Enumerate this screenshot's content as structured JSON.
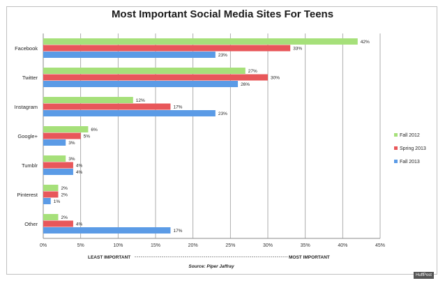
{
  "chart_data": {
    "type": "bar",
    "orientation": "horizontal",
    "title": "Most Important Social Media Sites For Teens",
    "categories": [
      "Facebook",
      "Twitter",
      "Instagram",
      "Google+",
      "Tumblr",
      "Pinterest",
      "Other"
    ],
    "series": [
      {
        "name": "Fall 2012",
        "color": "#a6e07a",
        "values": [
          42,
          27,
          12,
          6,
          3,
          2,
          2
        ]
      },
      {
        "name": "Spring 2013",
        "color": "#e8575a",
        "values": [
          33,
          30,
          17,
          5,
          4,
          2,
          4
        ]
      },
      {
        "name": "Fall 2013",
        "color": "#5b9be6",
        "values": [
          23,
          26,
          23,
          3,
          4,
          1,
          17
        ]
      }
    ],
    "x_ticks": [
      "0%",
      "5%",
      "10%",
      "15%",
      "20%",
      "25%",
      "30%",
      "35%",
      "40%",
      "45%"
    ],
    "xlim": [
      0,
      45
    ],
    "value_suffix": "%",
    "grid": true,
    "legend_position": "right",
    "axis_note_left": "LEAST IMPORTANT",
    "axis_note_right": "MOST IMPORTANT",
    "source": "Source: Piper Jaffray"
  },
  "watermark": "HuffPost"
}
